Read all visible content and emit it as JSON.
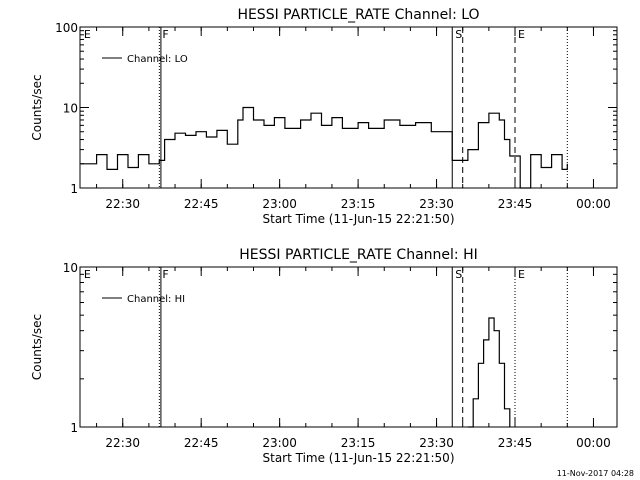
{
  "chart_data": [
    {
      "type": "line",
      "title": "HESSI PARTICLE_RATE Channel: LO",
      "xlabel": "Start Time (11-Jun-15 22:21:50)",
      "ylabel": "Counts/sec",
      "yscale": "log",
      "ylim": [
        1,
        100
      ],
      "y_ticks": [
        "1",
        "10",
        "100"
      ],
      "x_ticks": [
        "22:30",
        "22:45",
        "23:00",
        "23:15",
        "23:30",
        "23:45",
        "00:00"
      ],
      "legend": "Channel: LO",
      "legend_placement": "top-left",
      "markers": [
        {
          "label": "E",
          "time": "22:22",
          "style": "none"
        },
        {
          "label": "F",
          "time": "22:37",
          "style": "dotted"
        },
        {
          "label": "",
          "time": "22:37.3",
          "style": "solid"
        },
        {
          "label": "S",
          "time": "23:33",
          "style": "solid"
        },
        {
          "label": "",
          "time": "23:35",
          "style": "dashed"
        },
        {
          "label": "E",
          "time": "23:45",
          "style": "dashed"
        },
        {
          "label": "",
          "time": "23:55",
          "style": "dotted"
        }
      ],
      "series": [
        {
          "values": [
            [
              "22:22",
              2
            ],
            [
              "22:25",
              2.6
            ],
            [
              "22:27",
              1.7
            ],
            [
              "22:29",
              2.6
            ],
            [
              "22:31",
              1.8
            ],
            [
              "22:33",
              2.6
            ],
            [
              "22:35",
              2
            ],
            [
              "22:37",
              2.2
            ],
            [
              "22:38",
              4
            ],
            [
              "22:40",
              4.8
            ],
            [
              "22:42",
              4.5
            ],
            [
              "22:44",
              5
            ],
            [
              "22:46",
              4.3
            ],
            [
              "22:48",
              5.2
            ],
            [
              "22:50",
              3.5
            ],
            [
              "22:52",
              7
            ],
            [
              "22:53",
              10
            ],
            [
              "22:55",
              7
            ],
            [
              "22:57",
              6
            ],
            [
              "22:59",
              7.5
            ],
            [
              "23:01",
              5.5
            ],
            [
              "23:04",
              7
            ],
            [
              "23:06",
              8.5
            ],
            [
              "23:08",
              6
            ],
            [
              "23:10",
              7.5
            ],
            [
              "23:12",
              5.5
            ],
            [
              "23:15",
              6.5
            ],
            [
              "23:17",
              5.5
            ],
            [
              "23:20",
              7
            ],
            [
              "23:23",
              6
            ],
            [
              "23:26",
              6.5
            ],
            [
              "23:29",
              5
            ],
            [
              "23:33",
              2.2
            ],
            [
              "23:36",
              3
            ],
            [
              "23:38",
              6.5
            ],
            [
              "23:40",
              8.5
            ],
            [
              "23:42",
              7
            ],
            [
              "23:43",
              4
            ],
            [
              "23:44",
              2.5
            ],
            [
              "23:46",
              1
            ],
            [
              "23:48",
              2.6
            ],
            [
              "23:50",
              1.8
            ],
            [
              "23:52",
              2.6
            ],
            [
              "23:54",
              1.7
            ],
            [
              "23:55",
              2
            ]
          ]
        }
      ]
    },
    {
      "type": "line",
      "title": "HESSI PARTICLE_RATE Channel: HI",
      "xlabel": "Start Time (11-Jun-15 22:21:50)",
      "ylabel": "Counts/sec",
      "yscale": "log",
      "ylim": [
        1,
        10
      ],
      "y_ticks": [
        "1",
        "10"
      ],
      "x_ticks": [
        "22:30",
        "22:45",
        "23:00",
        "23:15",
        "23:30",
        "23:45",
        "00:00"
      ],
      "legend": "Channel: HI",
      "legend_placement": "top-left",
      "markers": [
        {
          "label": "E",
          "time": "22:22",
          "style": "none"
        },
        {
          "label": "F",
          "time": "22:37",
          "style": "dotted"
        },
        {
          "label": "",
          "time": "22:37.3",
          "style": "solid"
        },
        {
          "label": "S",
          "time": "23:33",
          "style": "solid"
        },
        {
          "label": "",
          "time": "23:35",
          "style": "dashed"
        },
        {
          "label": "E",
          "time": "23:45",
          "style": "dotted"
        },
        {
          "label": "",
          "time": "23:55",
          "style": "dotted"
        }
      ],
      "series": [
        {
          "values": [
            [
              "23:36",
              1
            ],
            [
              "23:37",
              1.5
            ],
            [
              "23:38",
              2.5
            ],
            [
              "23:39",
              3.5
            ],
            [
              "23:40",
              4.8
            ],
            [
              "23:41",
              4
            ],
            [
              "23:42",
              2.5
            ],
            [
              "23:43",
              1.3
            ],
            [
              "23:44",
              1
            ]
          ]
        }
      ]
    }
  ],
  "footer": {
    "timestamp": "11-Nov-2017 04:28"
  }
}
